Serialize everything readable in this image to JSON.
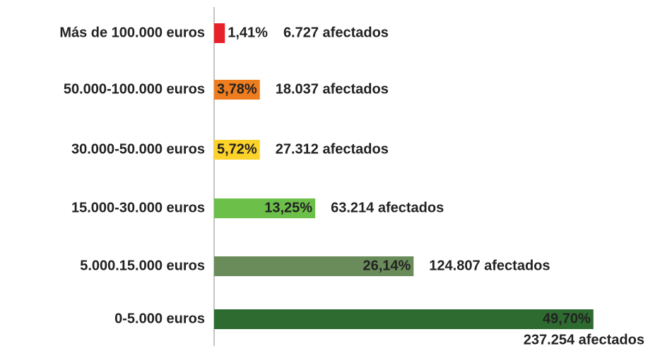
{
  "chart_data": {
    "type": "hbar",
    "categories": [
      "Más de 100.000 euros",
      "50.000-100.000 euros",
      "30.000-50.000 euros",
      "15.000-30.000 euros",
      "5.000.15.000 euros",
      "0-5.000 euros"
    ],
    "values": [
      1.41,
      3.78,
      5.72,
      13.25,
      26.14,
      49.7
    ],
    "value_labels": [
      "1,41%",
      "3,78%",
      "5,72%",
      "13,25%",
      "26,14%",
      "49,70%"
    ],
    "colors": [
      "#e8202a",
      "#ee7d1f",
      "#fdd32a",
      "#6cc04a",
      "#6a8c5a",
      "#2e6b30"
    ],
    "label_colors": [
      "#e8202a",
      "#ffffff",
      "#222222",
      "#ffffff",
      "#ffffff",
      "#ffffff"
    ],
    "annotations": [
      "6.727 afectados",
      "18.037 afectados",
      "27.312 afectados",
      "63.214 afectados",
      "124.807 afectados",
      "237.254 afectados"
    ]
  }
}
